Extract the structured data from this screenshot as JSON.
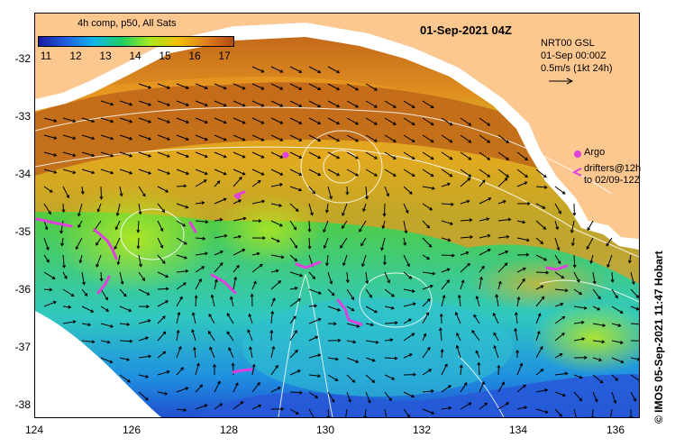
{
  "map": {
    "title": "01-Sep-2021 04Z",
    "colorbar": {
      "title": "4h comp, p50, All Sats",
      "ticks": [
        "11",
        "12",
        "13",
        "14",
        "15",
        "16",
        "17"
      ],
      "colors": [
        "#1a1aa0",
        "#2060e0",
        "#10b8e8",
        "#20d060",
        "#a8e820",
        "#f0c000",
        "#e08020",
        "#b04a10"
      ]
    },
    "current_info": {
      "line1": "NRT00 GSL",
      "line2": "01-Sep 00:00Z",
      "line3": "0.5m/s (1kt 24h)"
    },
    "legend": {
      "argo_label": "Argo",
      "drifter_line1": "drifters@12h",
      "drifter_line2": "to 02/09-12Z",
      "argo_color": "#e040e0",
      "drifter_color": "#e040e0"
    },
    "latitude_labels": [
      "-32",
      "-33",
      "-34",
      "-35",
      "-36",
      "-37",
      "-38"
    ],
    "longitude_labels": [
      "124",
      "126",
      "128",
      "130",
      "132",
      "134",
      "136"
    ],
    "credit": "© IMOS 05-Sep-2021 11:47 Hobart",
    "land_color": "#fcc890",
    "sea_colors": {
      "warm": "#d07020",
      "mid": "#e8b020",
      "cool_green": "#60d040",
      "cyan": "#30c8d8",
      "deep_blue": "#2050d0"
    }
  }
}
